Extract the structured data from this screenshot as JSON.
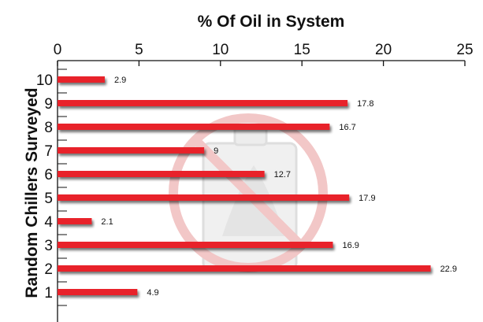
{
  "chart_data": {
    "type": "bar",
    "orientation": "horizontal",
    "title": "% Of Oil in System",
    "xlabel": "% Of Oil in System",
    "ylabel": "Random Chillers Surveyed",
    "xlim": [
      0,
      25
    ],
    "x_ticks": [
      "0",
      "5",
      "10",
      "15",
      "20",
      "25"
    ],
    "x_axis_position": "top",
    "categories": [
      "1",
      "2",
      "3",
      "4",
      "5",
      "6",
      "7",
      "8",
      "9",
      "10"
    ],
    "values": [
      4.9,
      22.9,
      16.9,
      2.1,
      17.9,
      12.7,
      9,
      16.7,
      17.8,
      2.9
    ],
    "data_labels": [
      "4.9",
      "22.9",
      "16.9",
      "2.1",
      "17.9",
      "12.7",
      "9",
      "16.7",
      "17.8",
      "2.9"
    ],
    "grid": false,
    "legend": "none",
    "colors": {
      "bar": "#e8212a",
      "shadow": "#9a9a9a",
      "axis": "#111111",
      "background_icon": "#d9d9d9",
      "no_symbol": "#e89a9a"
    },
    "background_icon": "no-oil-can-icon"
  }
}
